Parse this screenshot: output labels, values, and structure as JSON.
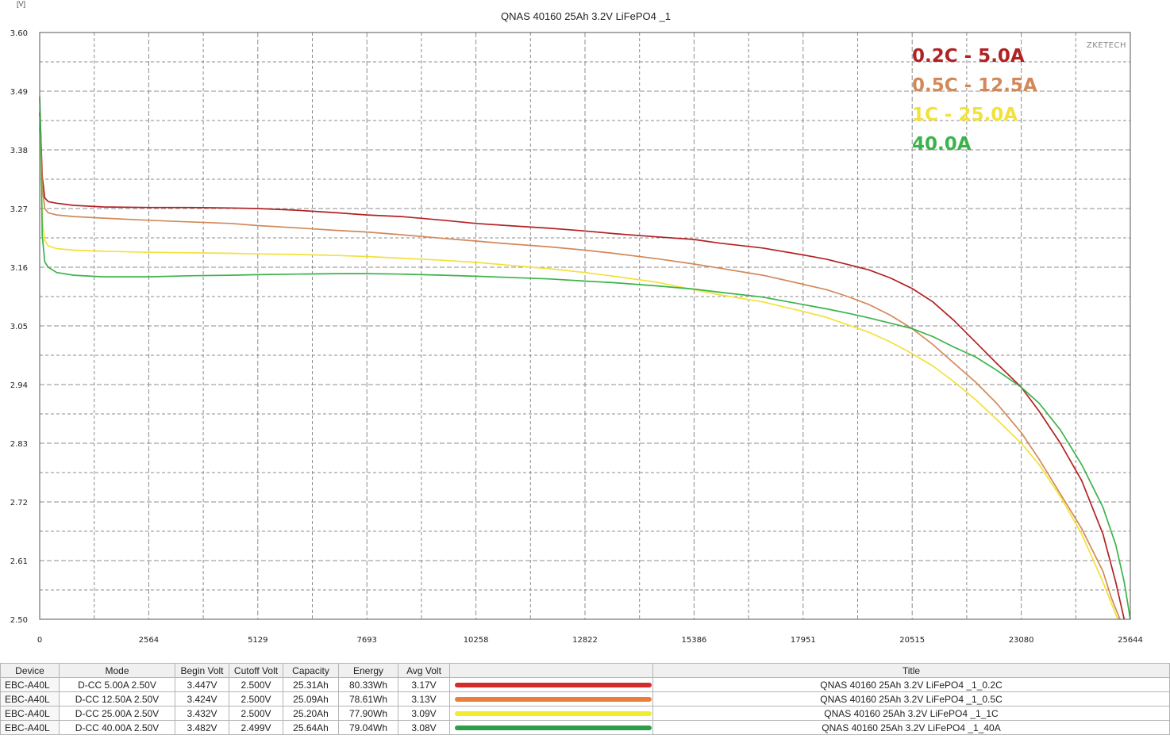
{
  "chart_data": {
    "type": "line",
    "title": "QNAS 40160 25Ah 3.2V LiFePO4 _1",
    "ylabel": "[V]",
    "xlabel": "",
    "watermark": "ZKETECH",
    "xlim": [
      0,
      25644
    ],
    "ylim": [
      2.5,
      3.6
    ],
    "x_ticks": [
      "0",
      "2564",
      "5129",
      "7693",
      "10258",
      "12822",
      "15386",
      "17951",
      "20515",
      "23080",
      "25644"
    ],
    "y_ticks": [
      "3.60",
      "3.49",
      "3.38",
      "3.27",
      "3.16",
      "3.05",
      "2.94",
      "2.83",
      "2.72",
      "2.61",
      "2.50"
    ],
    "grid": true,
    "legend": "top-right",
    "series": [
      {
        "name": "0.2C - 5.0A",
        "color": "#b22222",
        "points": [
          [
            0,
            3.45
          ],
          [
            30,
            3.4
          ],
          [
            60,
            3.33
          ],
          [
            120,
            3.29
          ],
          [
            200,
            3.283
          ],
          [
            400,
            3.28
          ],
          [
            800,
            3.276
          ],
          [
            1500,
            3.273
          ],
          [
            2564,
            3.272
          ],
          [
            3500,
            3.272
          ],
          [
            4500,
            3.271
          ],
          [
            5129,
            3.27
          ],
          [
            6000,
            3.267
          ],
          [
            7000,
            3.262
          ],
          [
            7693,
            3.258
          ],
          [
            8500,
            3.255
          ],
          [
            9500,
            3.248
          ],
          [
            10258,
            3.242
          ],
          [
            11000,
            3.238
          ],
          [
            12000,
            3.233
          ],
          [
            12822,
            3.228
          ],
          [
            13500,
            3.223
          ],
          [
            14500,
            3.217
          ],
          [
            15386,
            3.212
          ],
          [
            16000,
            3.205
          ],
          [
            17000,
            3.196
          ],
          [
            17951,
            3.183
          ],
          [
            18500,
            3.175
          ],
          [
            19000,
            3.165
          ],
          [
            19500,
            3.155
          ],
          [
            20000,
            3.14
          ],
          [
            20515,
            3.12
          ],
          [
            21000,
            3.095
          ],
          [
            21500,
            3.06
          ],
          [
            22000,
            3.02
          ],
          [
            22500,
            2.98
          ],
          [
            23080,
            2.935
          ],
          [
            23500,
            2.89
          ],
          [
            24000,
            2.83
          ],
          [
            24500,
            2.76
          ],
          [
            25000,
            2.66
          ],
          [
            25300,
            2.57
          ],
          [
            25500,
            2.5
          ]
        ]
      },
      {
        "name": "0.5C - 12.5A",
        "color": "#d2895a",
        "points": [
          [
            0,
            3.42
          ],
          [
            30,
            3.38
          ],
          [
            60,
            3.31
          ],
          [
            120,
            3.27
          ],
          [
            200,
            3.262
          ],
          [
            400,
            3.258
          ],
          [
            800,
            3.255
          ],
          [
            1500,
            3.252
          ],
          [
            2564,
            3.248
          ],
          [
            3500,
            3.245
          ],
          [
            4500,
            3.242
          ],
          [
            5129,
            3.238
          ],
          [
            6000,
            3.234
          ],
          [
            7000,
            3.229
          ],
          [
            7693,
            3.226
          ],
          [
            8500,
            3.221
          ],
          [
            9500,
            3.214
          ],
          [
            10258,
            3.209
          ],
          [
            11000,
            3.204
          ],
          [
            12000,
            3.198
          ],
          [
            12822,
            3.192
          ],
          [
            13500,
            3.186
          ],
          [
            14500,
            3.176
          ],
          [
            15386,
            3.166
          ],
          [
            16000,
            3.158
          ],
          [
            17000,
            3.145
          ],
          [
            17951,
            3.128
          ],
          [
            18500,
            3.118
          ],
          [
            19000,
            3.105
          ],
          [
            19500,
            3.09
          ],
          [
            20000,
            3.07
          ],
          [
            20515,
            3.045
          ],
          [
            21000,
            3.015
          ],
          [
            21500,
            2.98
          ],
          [
            22000,
            2.945
          ],
          [
            22500,
            2.905
          ],
          [
            23080,
            2.85
          ],
          [
            23500,
            2.8
          ],
          [
            24000,
            2.735
          ],
          [
            24500,
            2.67
          ],
          [
            25000,
            2.59
          ],
          [
            25200,
            2.54
          ],
          [
            25400,
            2.5
          ]
        ]
      },
      {
        "name": "1C - 25.0A",
        "color": "#f2e13a",
        "points": [
          [
            0,
            3.43
          ],
          [
            30,
            3.36
          ],
          [
            60,
            3.25
          ],
          [
            120,
            3.21
          ],
          [
            200,
            3.2
          ],
          [
            400,
            3.195
          ],
          [
            800,
            3.192
          ],
          [
            1500,
            3.19
          ],
          [
            2564,
            3.188
          ],
          [
            3500,
            3.187
          ],
          [
            4500,
            3.186
          ],
          [
            5129,
            3.185
          ],
          [
            6000,
            3.184
          ],
          [
            7000,
            3.182
          ],
          [
            7693,
            3.18
          ],
          [
            8500,
            3.177
          ],
          [
            9500,
            3.173
          ],
          [
            10258,
            3.169
          ],
          [
            11000,
            3.164
          ],
          [
            12000,
            3.157
          ],
          [
            12822,
            3.15
          ],
          [
            13500,
            3.143
          ],
          [
            14500,
            3.132
          ],
          [
            15386,
            3.118
          ],
          [
            16000,
            3.108
          ],
          [
            17000,
            3.095
          ],
          [
            17951,
            3.077
          ],
          [
            18500,
            3.066
          ],
          [
            19000,
            3.052
          ],
          [
            19500,
            3.038
          ],
          [
            20000,
            3.02
          ],
          [
            20515,
            2.998
          ],
          [
            21000,
            2.975
          ],
          [
            21500,
            2.945
          ],
          [
            22000,
            2.912
          ],
          [
            22500,
            2.875
          ],
          [
            23080,
            2.83
          ],
          [
            23500,
            2.79
          ],
          [
            24000,
            2.73
          ],
          [
            24500,
            2.66
          ],
          [
            25000,
            2.57
          ],
          [
            25200,
            2.53
          ],
          [
            25350,
            2.5
          ]
        ]
      },
      {
        "name": "40.0A",
        "color": "#3cb34a",
        "points": [
          [
            0,
            3.48
          ],
          [
            30,
            3.4
          ],
          [
            60,
            3.22
          ],
          [
            120,
            3.17
          ],
          [
            200,
            3.16
          ],
          [
            400,
            3.15
          ],
          [
            800,
            3.145
          ],
          [
            1500,
            3.142
          ],
          [
            2564,
            3.142
          ],
          [
            3500,
            3.144
          ],
          [
            4500,
            3.145
          ],
          [
            5129,
            3.146
          ],
          [
            6000,
            3.147
          ],
          [
            7000,
            3.148
          ],
          [
            7693,
            3.148
          ],
          [
            8500,
            3.147
          ],
          [
            9500,
            3.145
          ],
          [
            10258,
            3.143
          ],
          [
            11000,
            3.141
          ],
          [
            12000,
            3.138
          ],
          [
            12822,
            3.134
          ],
          [
            13500,
            3.131
          ],
          [
            14500,
            3.125
          ],
          [
            15386,
            3.119
          ],
          [
            16000,
            3.113
          ],
          [
            17000,
            3.104
          ],
          [
            17951,
            3.09
          ],
          [
            18500,
            3.082
          ],
          [
            19000,
            3.074
          ],
          [
            19500,
            3.065
          ],
          [
            20000,
            3.055
          ],
          [
            20515,
            3.045
          ],
          [
            21000,
            3.03
          ],
          [
            21500,
            3.01
          ],
          [
            22000,
            2.992
          ],
          [
            22500,
            2.967
          ],
          [
            23080,
            2.935
          ],
          [
            23500,
            2.905
          ],
          [
            24000,
            2.855
          ],
          [
            24500,
            2.79
          ],
          [
            25000,
            2.71
          ],
          [
            25300,
            2.64
          ],
          [
            25500,
            2.57
          ],
          [
            25644,
            2.5
          ]
        ]
      }
    ]
  },
  "legend_table": {
    "headers": [
      "Device",
      "Mode",
      "Begin Volt",
      "Cutoff Volt",
      "Capacity",
      "Energy",
      "Avg Volt",
      "",
      "Title"
    ],
    "rows": [
      {
        "device": "EBC-A40L",
        "mode": "D-CC  5.00A  2.50V",
        "begin_volt": "3.447V",
        "cutoff_volt": "2.500V",
        "capacity": "25.31Ah",
        "energy": "80.33Wh",
        "avg_volt": "3.17V",
        "color": "#d42b2b",
        "title": "QNAS 40160 25Ah 3.2V LiFePO4 _1_0.2C"
      },
      {
        "device": "EBC-A40L",
        "mode": "D-CC  12.50A  2.50V",
        "begin_volt": "3.424V",
        "cutoff_volt": "2.500V",
        "capacity": "25.09Ah",
        "energy": "78.61Wh",
        "avg_volt": "3.13V",
        "color": "#ea7f3a",
        "title": "QNAS 40160 25Ah 3.2V LiFePO4 _1_0.5C"
      },
      {
        "device": "EBC-A40L",
        "mode": "D-CC  25.00A  2.50V",
        "begin_volt": "3.432V",
        "cutoff_volt": "2.500V",
        "capacity": "25.20Ah",
        "energy": "77.90Wh",
        "avg_volt": "3.09V",
        "color": "#f3ec2a",
        "title": "QNAS 40160 25Ah 3.2V LiFePO4 _1_1C"
      },
      {
        "device": "EBC-A40L",
        "mode": "D-CC  40.00A  2.50V",
        "begin_volt": "3.482V",
        "cutoff_volt": "2.499V",
        "capacity": "25.64Ah",
        "energy": "79.04Wh",
        "avg_volt": "3.08V",
        "color": "#2e9e4b",
        "title": "QNAS 40160 25Ah 3.2V LiFePO4 _1_40A"
      }
    ]
  }
}
